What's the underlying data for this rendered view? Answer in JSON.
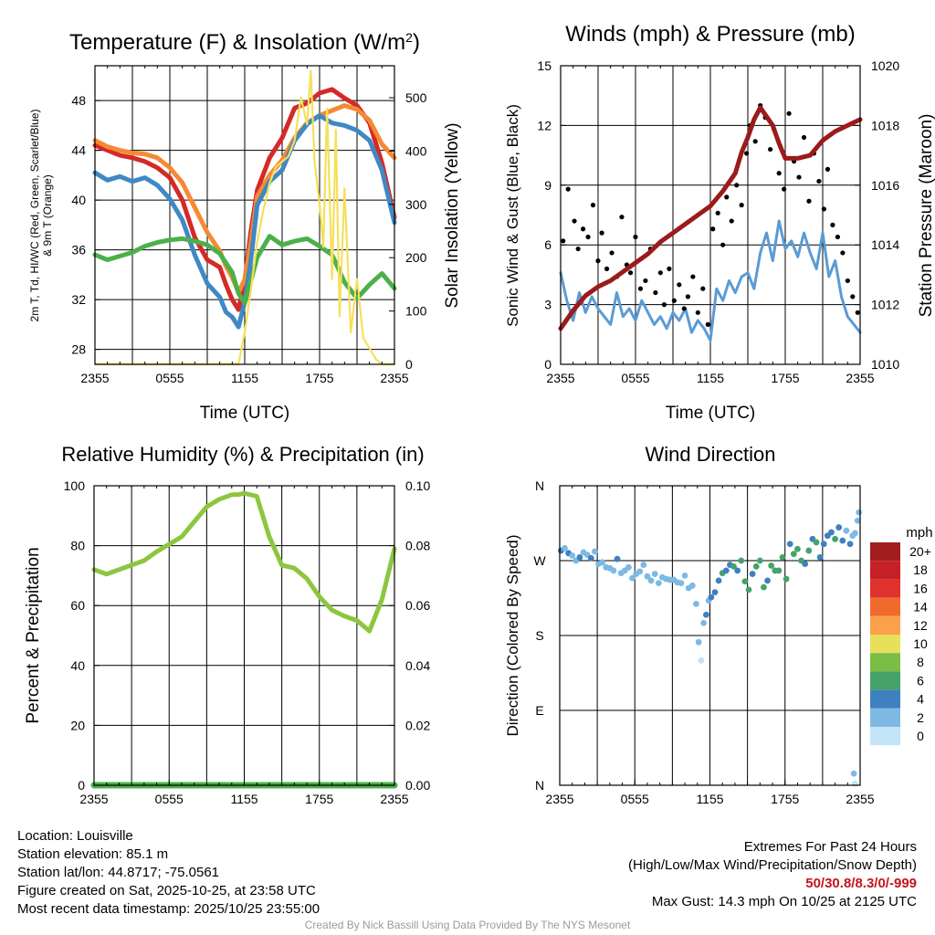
{
  "colors": {
    "red": "#d42a26",
    "orange": "#f58a33",
    "green": "#4cb04a",
    "blue": "#3f88c5",
    "yellow": "#f5e05a",
    "maroon": "#9b1b1b",
    "wind_blue": "#5a9bd4",
    "rh_green": "#8cc63f"
  },
  "chart_data": [
    {
      "id": "temperature",
      "type": "line",
      "title": "Temperature (F) & Insolation (W/m",
      "title_sup": "2",
      "title_close": ")",
      "xlabel": "Time (UTC)",
      "ylabel_lines": [
        "2m T, Td, HI/WC (Red, Green, Scarlet/Blue)",
        "& 9m T (Orange)"
      ],
      "y2label": "Solar Insolation (Yellow)",
      "x_ticks": [
        "2355",
        "0555",
        "1155",
        "1755",
        "2355"
      ],
      "y_ticks": [
        28,
        32,
        36,
        40,
        44,
        48
      ],
      "y_range": [
        26.8,
        50.8
      ],
      "y2_ticks": [
        0,
        100,
        200,
        300,
        400,
        500
      ],
      "y2_range": [
        0,
        560
      ],
      "series": [
        {
          "name": "2m T",
          "axis": "left",
          "color": "red",
          "x": [
            0,
            1,
            2,
            3,
            4,
            5,
            6,
            7,
            8,
            9,
            10,
            10.5,
            11,
            11.5,
            12,
            12.5,
            13,
            14,
            15,
            16,
            17,
            18,
            19,
            20,
            21,
            22,
            23,
            24
          ],
          "y": [
            44.4,
            44.0,
            43.6,
            43.4,
            43.1,
            42.6,
            41.8,
            40.0,
            37.0,
            35.2,
            34.6,
            33.2,
            32.0,
            31.2,
            33.5,
            37.5,
            40.8,
            43.4,
            45.0,
            47.4,
            47.8,
            48.6,
            48.9,
            48.2,
            47.6,
            46.2,
            43.0,
            38.6
          ]
        },
        {
          "name": "9m T",
          "axis": "left",
          "color": "orange",
          "x": [
            0,
            1,
            2,
            3,
            4,
            5,
            6,
            7,
            8,
            9,
            10,
            10.5,
            11,
            11.5,
            12,
            12.5,
            13,
            14,
            15,
            16,
            17,
            18,
            19,
            20,
            21,
            22,
            23,
            24
          ],
          "y": [
            44.8,
            44.3,
            44.0,
            43.8,
            43.7,
            43.4,
            42.6,
            41.4,
            39.4,
            37.4,
            35.9,
            34.7,
            33.8,
            32.6,
            33.6,
            36.6,
            40.3,
            42.0,
            43.2,
            45.0,
            46.2,
            46.8,
            47.2,
            47.6,
            47.3,
            46.4,
            44.5,
            43.4
          ]
        },
        {
          "name": "HI/WC",
          "axis": "left",
          "color": "blue",
          "x": [
            0,
            1,
            2,
            3,
            4,
            5,
            6,
            7,
            8,
            9,
            10,
            10.5,
            11,
            11.5,
            12,
            12.5,
            13,
            14,
            15,
            16,
            17,
            18,
            19,
            20,
            21,
            22,
            23,
            24
          ],
          "y": [
            42.2,
            41.6,
            41.9,
            41.5,
            41.8,
            41.2,
            40.1,
            38.4,
            35.6,
            33.3,
            32.2,
            31.0,
            30.6,
            29.8,
            31.8,
            35.2,
            39.6,
            41.5,
            42.4,
            44.8,
            46.1,
            46.8,
            46.2,
            46.0,
            45.6,
            44.8,
            42.4,
            38.2
          ]
        },
        {
          "name": "2m Td",
          "axis": "left",
          "color": "green",
          "x": [
            0,
            1,
            2,
            3,
            4,
            5,
            6,
            7,
            8,
            9,
            10,
            11,
            11.5,
            12,
            13,
            14,
            15,
            16,
            17,
            18,
            19,
            20,
            21,
            22,
            23,
            24
          ],
          "y": [
            35.6,
            35.2,
            35.5,
            35.8,
            36.3,
            36.6,
            36.8,
            36.9,
            36.7,
            36.4,
            35.7,
            34.2,
            32.5,
            31.7,
            35.4,
            37.1,
            36.4,
            36.7,
            36.9,
            36.3,
            35.6,
            33.4,
            32.1,
            33.2,
            34.1,
            32.9
          ]
        },
        {
          "name": "Solar Insolation",
          "axis": "right",
          "color": "yellow",
          "x": [
            0,
            11.5,
            12,
            12.5,
            13,
            13.5,
            14,
            14.5,
            15,
            15.5,
            16,
            16.5,
            17,
            17.3,
            17.6,
            18,
            18.3,
            18.6,
            19,
            19.3,
            19.6,
            20,
            20.5,
            21,
            21.5,
            22,
            22.5,
            23,
            24
          ],
          "y": [
            0,
            0,
            60,
            140,
            230,
            290,
            340,
            370,
            380,
            390,
            420,
            500,
            450,
            550,
            380,
            300,
            220,
            480,
            160,
            440,
            90,
            330,
            60,
            160,
            50,
            30,
            10,
            0,
            0
          ]
        }
      ]
    },
    {
      "id": "winds",
      "type": "line",
      "title": "Winds (mph) & Pressure (mb)",
      "xlabel": "Time (UTC)",
      "ylabel": "Sonic Wind & Gust (Blue, Black)",
      "y2label": "Station Pressure (Maroon)",
      "x_ticks": [
        "2355",
        "0555",
        "1155",
        "1755",
        "2355"
      ],
      "y_ticks": [
        0,
        3,
        6,
        9,
        12,
        15
      ],
      "y_range": [
        0,
        15
      ],
      "y2_ticks": [
        1010,
        1012,
        1014,
        1016,
        1018,
        1020
      ],
      "y2_range": [
        1010,
        1020
      ],
      "series": [
        {
          "name": "Sonic Wind",
          "axis": "left",
          "color": "wind_blue",
          "x": [
            0,
            0.5,
            1,
            1.5,
            2,
            2.5,
            3,
            3.5,
            4,
            4.5,
            5,
            5.5,
            6,
            6.5,
            7,
            7.5,
            8,
            8.5,
            9,
            9.5,
            10,
            10.5,
            11,
            11.5,
            12,
            12.5,
            13,
            13.5,
            14,
            14.5,
            15,
            15.5,
            16,
            16.5,
            17,
            17.5,
            18,
            18.5,
            19,
            19.5,
            20,
            20.5,
            21,
            21.5,
            22,
            22.5,
            23,
            23.5,
            24
          ],
          "y": [
            4.6,
            3.2,
            2.2,
            3.6,
            2.6,
            3.4,
            2.8,
            2.4,
            2.0,
            3.6,
            2.4,
            2.8,
            2.2,
            3.2,
            2.6,
            2.0,
            2.4,
            1.8,
            2.6,
            2.2,
            2.8,
            1.6,
            2.2,
            1.8,
            1.2,
            3.8,
            3.2,
            4.2,
            3.6,
            4.4,
            4.6,
            3.8,
            5.6,
            6.6,
            5.2,
            7.2,
            5.8,
            6.2,
            5.4,
            6.6,
            5.6,
            4.8,
            6.6,
            4.4,
            5.2,
            3.4,
            2.4,
            2.0,
            1.6
          ]
        },
        {
          "name": "Gust",
          "axis": "left",
          "color": "#000000",
          "style": "dots",
          "x": [
            0.2,
            0.6,
            1.1,
            1.4,
            1.8,
            2.2,
            2.6,
            3.0,
            3.3,
            3.7,
            4.1,
            4.5,
            4.9,
            5.3,
            5.6,
            6.0,
            6.4,
            6.8,
            7.2,
            7.6,
            8.0,
            8.3,
            8.7,
            9.1,
            9.5,
            9.9,
            10.2,
            10.6,
            11.0,
            11.4,
            11.8,
            12.2,
            12.6,
            13.0,
            13.3,
            13.7,
            14.1,
            14.5,
            14.9,
            15.2,
            15.6,
            16.0,
            16.4,
            16.8,
            17.1,
            17.5,
            17.9,
            18.3,
            18.7,
            19.1,
            19.5,
            19.9,
            20.3,
            20.7,
            21.1,
            21.4,
            21.8,
            22.2,
            22.6,
            23.0,
            23.4,
            23.8
          ],
          "y": [
            6.2,
            8.8,
            7.2,
            5.8,
            6.8,
            6.4,
            8.0,
            5.2,
            6.6,
            4.8,
            5.6,
            4.4,
            7.4,
            5.0,
            4.6,
            6.4,
            3.8,
            4.2,
            5.8,
            3.6,
            4.6,
            3.0,
            4.8,
            3.2,
            4.0,
            2.8,
            3.4,
            4.4,
            2.6,
            3.8,
            2.0,
            6.8,
            7.6,
            6.0,
            8.4,
            7.2,
            9.0,
            8.0,
            10.6,
            12.0,
            11.2,
            13.0,
            12.4,
            10.8,
            11.8,
            9.6,
            8.8,
            12.6,
            10.2,
            9.4,
            11.4,
            8.2,
            10.6,
            9.2,
            7.8,
            9.8,
            7.0,
            6.4,
            5.6,
            4.2,
            3.4,
            2.6
          ]
        },
        {
          "name": "Station Pressure",
          "axis": "right",
          "color": "maroon",
          "x": [
            0,
            1,
            2,
            3,
            4,
            5,
            6,
            7,
            8,
            9,
            10,
            11,
            12,
            13,
            14,
            14.5,
            15,
            15.5,
            16,
            17,
            17.5,
            18,
            19,
            20,
            21,
            22,
            23,
            24
          ],
          "y": [
            1011.2,
            1011.8,
            1012.3,
            1012.6,
            1012.8,
            1013.1,
            1013.4,
            1013.7,
            1014.1,
            1014.4,
            1014.7,
            1015.0,
            1015.3,
            1015.8,
            1016.4,
            1017.1,
            1017.6,
            1018.2,
            1018.6,
            1018.0,
            1017.4,
            1016.9,
            1016.9,
            1017.0,
            1017.5,
            1017.8,
            1018.0,
            1018.2
          ]
        }
      ]
    },
    {
      "id": "humidity",
      "type": "line",
      "title": "Relative Humidity (%) & Precipitation (in)",
      "ylabel": "Percent & Precipitation",
      "x_ticks": [
        "2355",
        "0555",
        "1155",
        "1755",
        "2355"
      ],
      "y_ticks": [
        0,
        20,
        40,
        60,
        80,
        100
      ],
      "y_range": [
        0,
        100
      ],
      "y2_ticks": [
        "0.00",
        "0.02",
        "0.04",
        "0.06",
        "0.08",
        "0.10"
      ],
      "y2_range": [
        0,
        0.1
      ],
      "series": [
        {
          "name": "Relative Humidity",
          "axis": "left",
          "color": "rh_green",
          "x": [
            0,
            1,
            2,
            3,
            4,
            5,
            6,
            7,
            8,
            9,
            10,
            11,
            11.5,
            12,
            13,
            14,
            15,
            16,
            17,
            18,
            19,
            20,
            21,
            22,
            23,
            24
          ],
          "y": [
            72.0,
            70.5,
            72.0,
            73.5,
            75.0,
            78.0,
            80.5,
            83.0,
            88.0,
            93.0,
            95.5,
            97.0,
            97.0,
            97.5,
            96.5,
            83.0,
            73.5,
            72.5,
            69.0,
            63.0,
            58.5,
            56.5,
            55.0,
            51.5,
            62.0,
            79.0
          ]
        },
        {
          "name": "Precipitation",
          "axis": "right",
          "color": "green",
          "x": [
            0,
            24
          ],
          "y": [
            0,
            0
          ]
        }
      ]
    },
    {
      "id": "direction",
      "type": "scatter",
      "title": "Wind Direction",
      "ylabel": "Direction (Colored By Speed)",
      "x_ticks": [
        "2355",
        "0555",
        "1155",
        "1755",
        "2355"
      ],
      "y_ticks": [
        "N",
        "E",
        "S",
        "W",
        "N"
      ],
      "y_range": [
        0,
        360
      ],
      "legend_title": "mph",
      "legend_labels": [
        "20+",
        "18",
        "16",
        "14",
        "12",
        "10",
        "8",
        "6",
        "4",
        "2",
        "0"
      ],
      "legend_colors": [
        "#a11c1c",
        "#c62027",
        "#e0312c",
        "#f06a2d",
        "#f9a24a",
        "#e8e05a",
        "#7cbd45",
        "#45a36a",
        "#3f80c0",
        "#7db9e4",
        "#c3e4f6"
      ],
      "points": {
        "x": [
          0.1,
          0.4,
          0.7,
          1.0,
          1.3,
          1.6,
          1.9,
          2.2,
          2.5,
          2.8,
          3.1,
          3.4,
          3.7,
          4.0,
          4.3,
          4.6,
          4.9,
          5.2,
          5.5,
          5.8,
          6.1,
          6.4,
          6.7,
          7.0,
          7.3,
          7.6,
          7.9,
          8.2,
          8.5,
          8.8,
          9.1,
          9.4,
          9.7,
          10.0,
          10.3,
          10.6,
          10.9,
          11.1,
          11.3,
          11.5,
          11.7,
          11.9,
          12.1,
          12.4,
          12.7,
          13.0,
          13.3,
          13.6,
          13.9,
          14.2,
          14.5,
          14.8,
          15.1,
          15.4,
          15.7,
          16.0,
          16.3,
          16.6,
          16.9,
          17.2,
          17.5,
          17.8,
          18.1,
          18.4,
          18.7,
          19.0,
          19.3,
          19.6,
          19.9,
          20.2,
          20.5,
          20.8,
          21.1,
          21.4,
          21.7,
          22.0,
          22.3,
          22.6,
          22.9,
          23.2,
          23.4,
          23.6,
          23.8,
          23.9,
          23.5,
          23.6
        ],
        "y": [
          282,
          285,
          279,
          276,
          270,
          274,
          280,
          277,
          273,
          281,
          266,
          268,
          262,
          261,
          258,
          272,
          255,
          258,
          262,
          249,
          254,
          257,
          265,
          251,
          246,
          254,
          243,
          250,
          248,
          247,
          247,
          244,
          243,
          252,
          237,
          240,
          218,
          172,
          150,
          195,
          205,
          222,
          226,
          232,
          246,
          255,
          258,
          265,
          263,
          258,
          270,
          245,
          235,
          254,
          263,
          270,
          238,
          246,
          264,
          258,
          258,
          274,
          248,
          290,
          278,
          284,
          270,
          266,
          282,
          296,
          292,
          274,
          290,
          300,
          304,
          296,
          310,
          294,
          306,
          290,
          300,
          303,
          318,
          328,
          14,
          2
        ],
        "speed": [
          4,
          3,
          4,
          2,
          3,
          4,
          3,
          2,
          4,
          3,
          2,
          3,
          2,
          3,
          2,
          4,
          2,
          3,
          2,
          2,
          3,
          2,
          3,
          2,
          2,
          3,
          2,
          2,
          3,
          2,
          2,
          3,
          2,
          2,
          3,
          2,
          2,
          2,
          1,
          3,
          4,
          3,
          4,
          5,
          4,
          6,
          4,
          5,
          7,
          5,
          6,
          6,
          7,
          5,
          6,
          7,
          6,
          5,
          7,
          6,
          6,
          6,
          7,
          5,
          6,
          6,
          7,
          5,
          6,
          4,
          6,
          5,
          5,
          4,
          5,
          6,
          4,
          5,
          3,
          4,
          2,
          3,
          2,
          3,
          2,
          1
        ]
      }
    }
  ],
  "info_left": {
    "location": "Location: Louisville",
    "elevation": "Station elevation: 85.1 m",
    "latlon": "Station lat/lon: 44.8717; -75.0561",
    "created": "Figure created on Sat, 2025-10-25, at 23:58 UTC",
    "recent": "Most recent data timestamp: 2025/10/25 23:55:00"
  },
  "info_right": {
    "title": "Extremes For Past 24 Hours",
    "subtitle": "(High/Low/Max Wind/Precipitation/Snow Depth)",
    "values": "50/30.8/8.3/0/-999",
    "gust": "Max Gust: 14.3 mph On 10/25 at 2125 UTC"
  },
  "credit": "Created By Nick Bassill Using Data Provided By The NYS Mesonet"
}
